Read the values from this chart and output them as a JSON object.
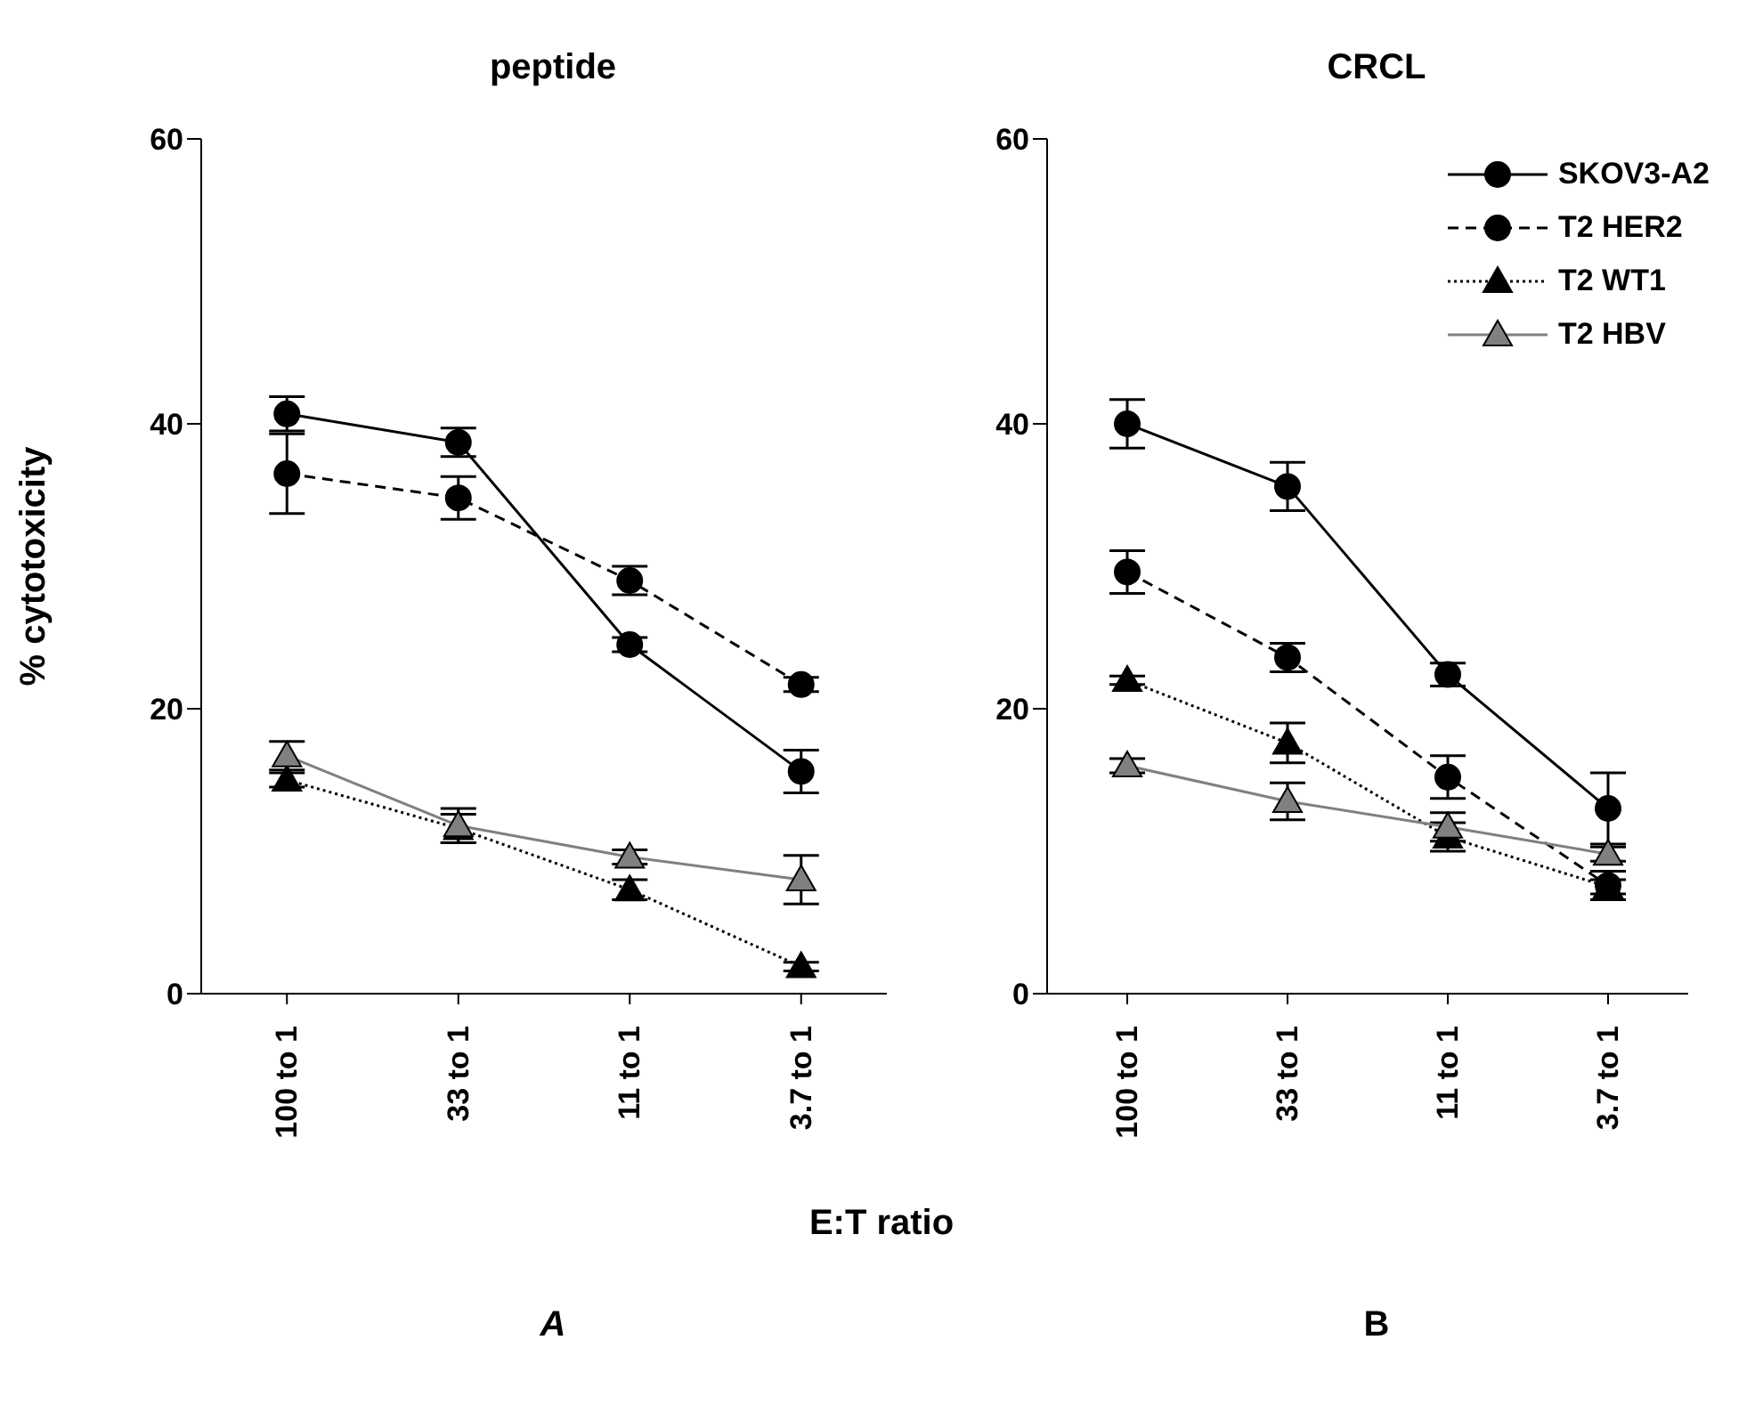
{
  "chart_data": [
    {
      "type": "line",
      "title": "peptide",
      "ylabel": "% cytotoxicity",
      "xlabel": "E:T ratio",
      "annotations": [
        "A"
      ],
      "categories": [
        "100 to 1",
        "33 to 1",
        "11 to 1",
        "3.7 to 1"
      ],
      "ylim": [
        0,
        60
      ],
      "yticks": [
        0,
        20,
        40,
        60
      ],
      "grid": false,
      "legend": false,
      "series": [
        {
          "color": "#000000",
          "marker": "circle",
          "line_style": "solid",
          "values": [
            40.7,
            38.7,
            24.5,
            15.6
          ],
          "errors": [
            1.2,
            1.0,
            0.5,
            1.5
          ]
        },
        {
          "color": "#000000",
          "marker": "circle",
          "line_style": "dashed",
          "values": [
            36.5,
            34.8,
            29.0,
            21.7
          ],
          "errors": [
            2.8,
            1.5,
            1.0,
            0.5
          ]
        },
        {
          "color": "#000000",
          "marker": "triangle",
          "line_style": "dotted",
          "values": [
            15.0,
            11.6,
            7.3,
            1.9
          ],
          "errors": [
            0.5,
            1.0,
            0.7,
            0.3
          ]
        },
        {
          "color": "#808080",
          "marker": "triangle",
          "line_style": "solid",
          "values": [
            16.7,
            11.8,
            9.6,
            8.0
          ],
          "errors": [
            1.0,
            1.2,
            0.5,
            1.7
          ]
        }
      ]
    },
    {
      "type": "line",
      "title": "CRCL",
      "annotations": [
        "B"
      ],
      "categories": [
        "100 to 1",
        "33 to 1",
        "11 to 1",
        "3.7 to 1"
      ],
      "ylim": [
        0,
        60
      ],
      "yticks": [
        0,
        20,
        40,
        60
      ],
      "grid": false,
      "legend": "top right",
      "series": [
        {
          "name": "SKOV3-A2",
          "color": "#000000",
          "marker": "circle",
          "line_style": "solid",
          "values": [
            40.0,
            35.6,
            22.4,
            13.0
          ],
          "errors": [
            1.7,
            1.7,
            0.8,
            2.5
          ]
        },
        {
          "name": "T2 HER2",
          "color": "#000000",
          "marker": "circle",
          "line_style": "dashed",
          "values": [
            29.6,
            23.6,
            15.2,
            7.6
          ],
          "errors": [
            1.5,
            1.0,
            1.5,
            1.0
          ]
        },
        {
          "name": "T2 WT1",
          "color": "#000000",
          "marker": "triangle",
          "line_style": "dotted",
          "values": [
            22.0,
            17.6,
            11.0,
            7.5
          ],
          "errors": [
            0.3,
            1.4,
            1.0,
            0.5
          ]
        },
        {
          "name": "T2 HBV",
          "color": "#808080",
          "marker": "triangle",
          "line_style": "solid",
          "values": [
            16.0,
            13.5,
            11.7,
            9.8
          ],
          "errors": [
            0.5,
            1.3,
            1.0,
            0.5
          ]
        }
      ]
    }
  ]
}
